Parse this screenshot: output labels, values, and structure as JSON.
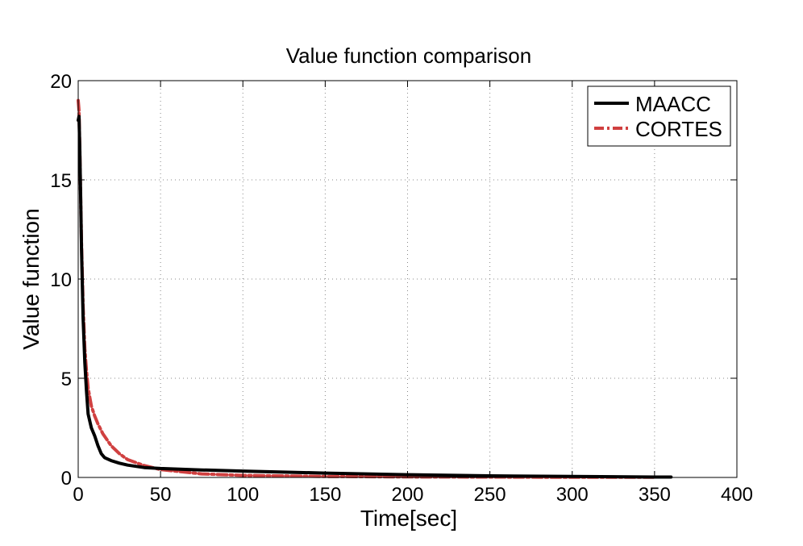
{
  "chart_data": {
    "type": "line",
    "title": "Value function comparison",
    "xlabel": "Time[sec]",
    "ylabel": "Value function",
    "xlim": [
      0,
      400
    ],
    "ylim": [
      0,
      20
    ],
    "xticks": [
      0,
      50,
      100,
      150,
      200,
      250,
      300,
      350,
      400
    ],
    "yticks": [
      0,
      5,
      10,
      15,
      20
    ],
    "xtick_labels": [
      "0",
      "50",
      "100",
      "150",
      "200",
      "250",
      "300",
      "350",
      "400"
    ],
    "ytick_labels": [
      "0",
      "5",
      "10",
      "15",
      "20"
    ],
    "grid": true,
    "legend_position": "top-right",
    "series": [
      {
        "name": "MAACC",
        "color": "#000000",
        "style": "solid",
        "x": [
          0,
          0.5,
          1,
          1.5,
          2,
          3,
          4,
          5,
          6,
          8,
          10,
          12,
          14,
          16,
          20,
          25,
          30,
          40,
          50,
          75,
          100,
          150,
          200,
          250,
          300,
          350,
          360
        ],
        "y": [
          18.0,
          18.2,
          16.5,
          14.0,
          11.5,
          8.0,
          5.8,
          4.4,
          3.2,
          2.5,
          2.1,
          1.6,
          1.2,
          1.0,
          0.85,
          0.72,
          0.62,
          0.5,
          0.45,
          0.38,
          0.32,
          0.22,
          0.14,
          0.08,
          0.05,
          0.02,
          0.02
        ]
      },
      {
        "name": "CORTES",
        "color": "#d04040",
        "style": "dash-dot",
        "x": [
          0,
          0.5,
          1,
          1.5,
          2,
          3,
          4,
          5,
          6,
          8,
          10,
          12,
          15,
          20,
          25,
          30,
          40,
          50,
          75,
          100,
          150,
          200,
          250,
          300,
          350
        ],
        "y": [
          19.0,
          18.5,
          16.5,
          14.0,
          11.8,
          8.6,
          6.5,
          5.4,
          4.5,
          3.6,
          3.1,
          2.7,
          2.2,
          1.6,
          1.2,
          0.9,
          0.6,
          0.4,
          0.18,
          0.1,
          0.05,
          0.03,
          0.02,
          0.01,
          0.01
        ]
      }
    ]
  }
}
